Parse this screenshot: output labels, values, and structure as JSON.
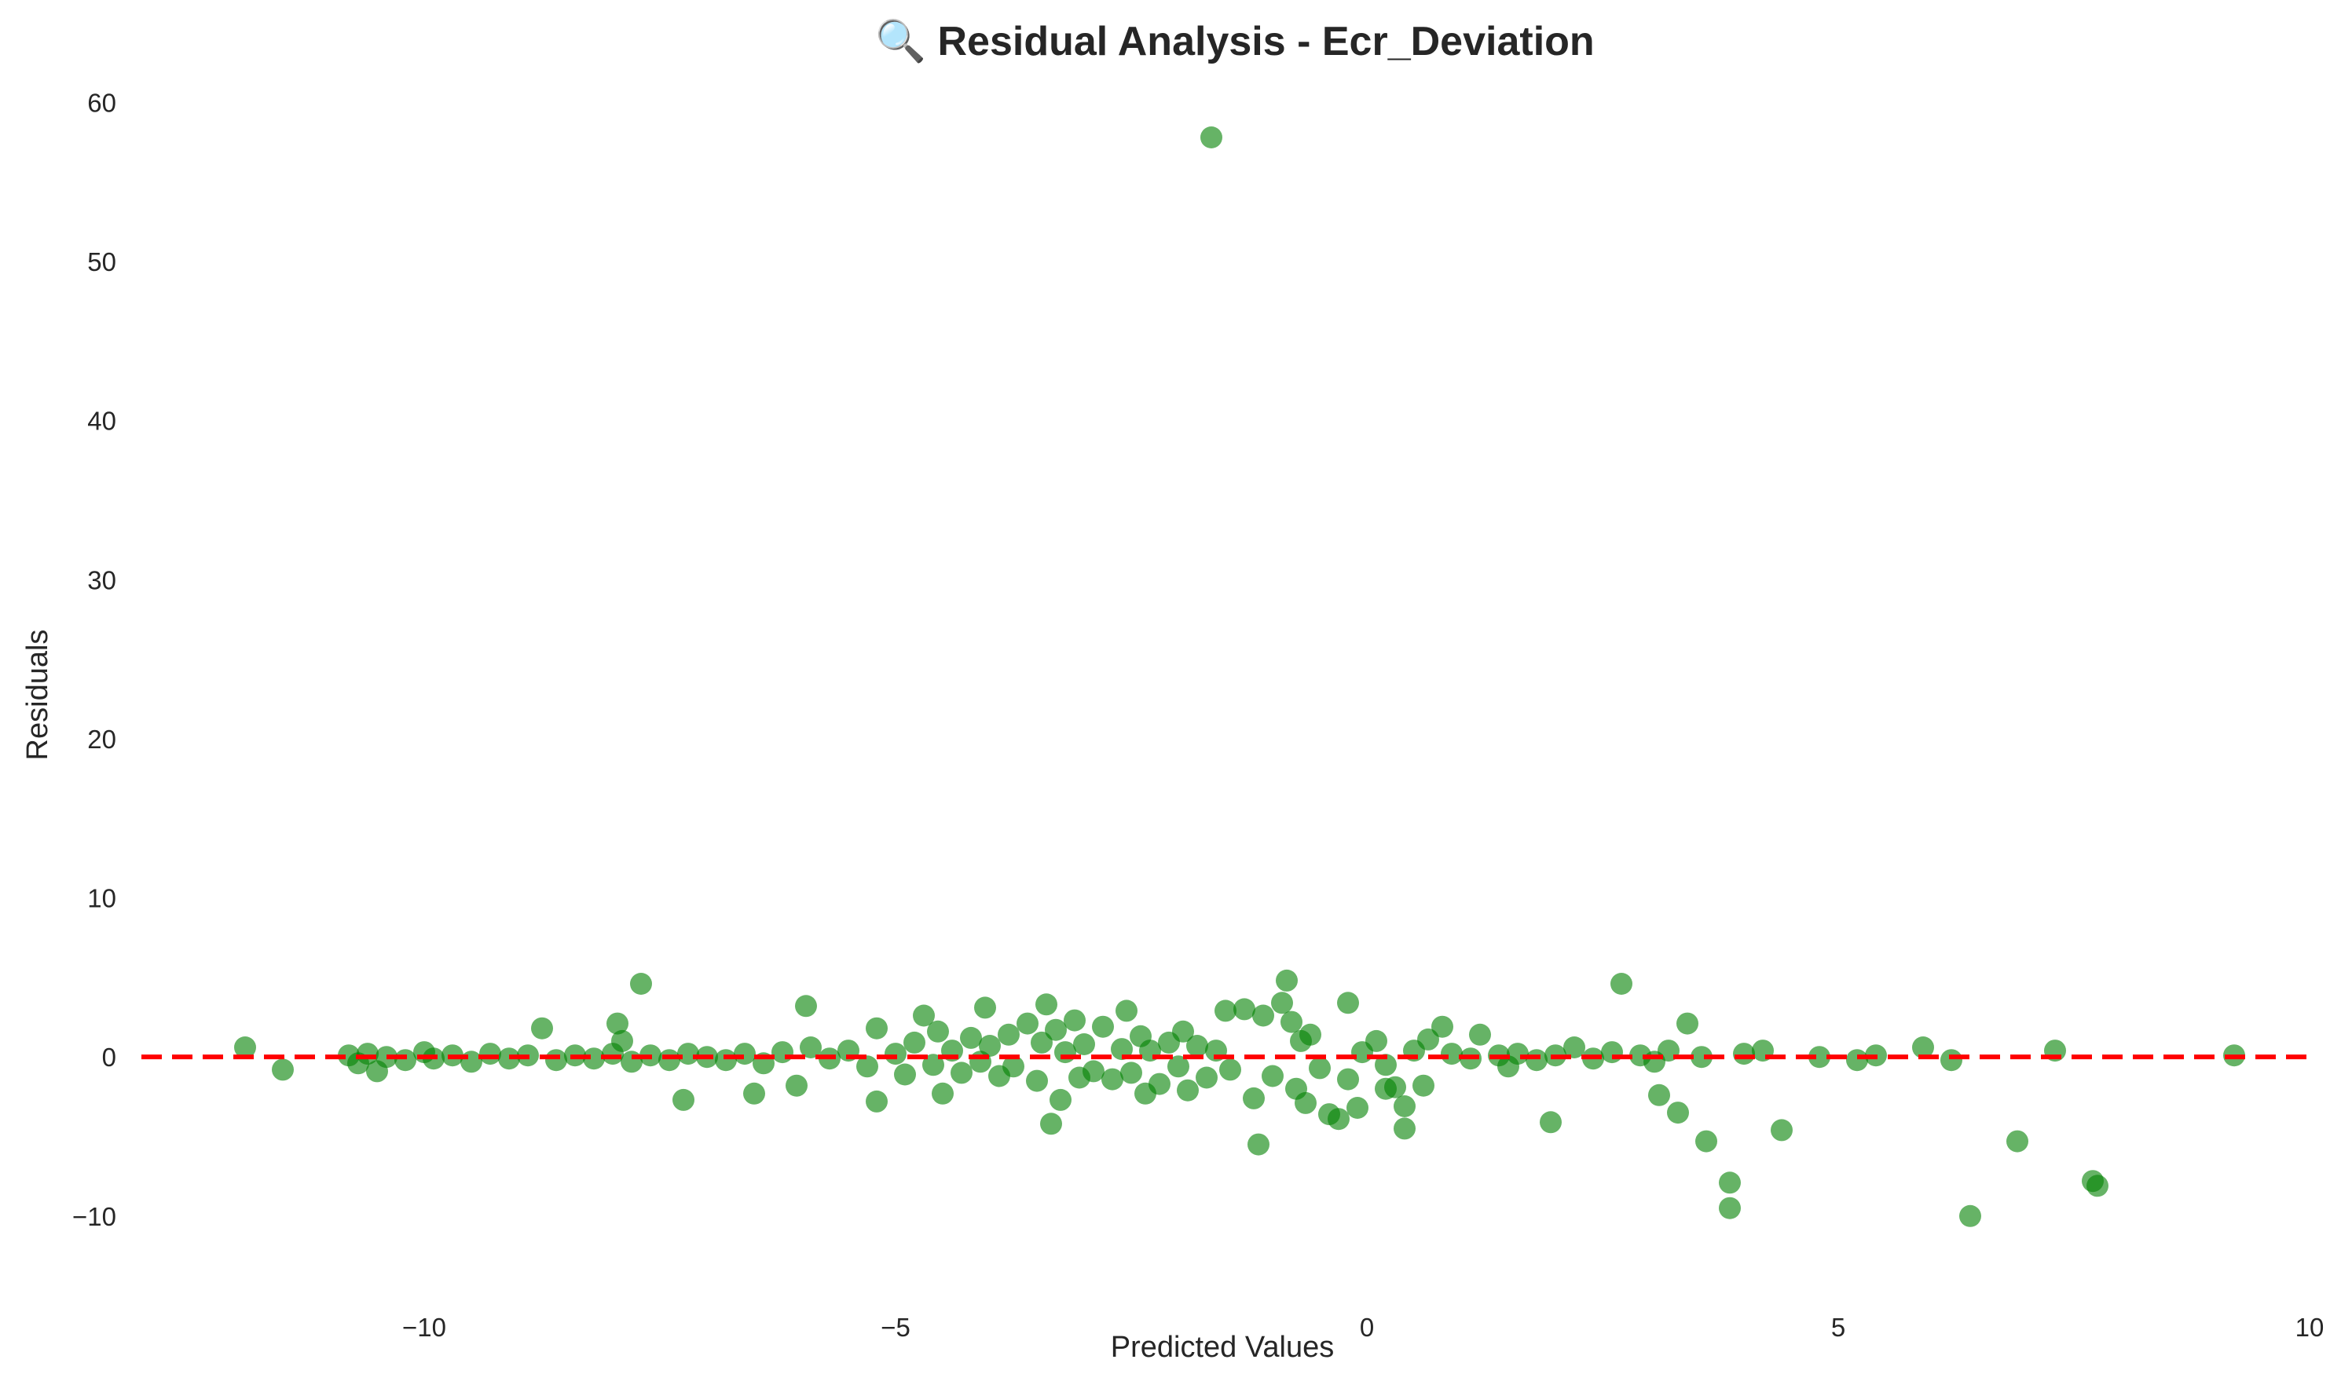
{
  "chart_data": {
    "type": "scatter",
    "title": "🔍 Residual Analysis - Ecr_Deviation",
    "xlabel": "Predicted Values",
    "ylabel": "Residuals",
    "xlim": [
      -13,
      10
    ],
    "ylim": [
      -14.5,
      61.5
    ],
    "xticks": [
      -10,
      -5,
      0,
      5,
      10
    ],
    "xtick_labels": [
      "−10",
      "−5",
      "0",
      "5",
      "10"
    ],
    "yticks": [
      -10,
      0,
      10,
      20,
      30,
      40,
      50,
      60
    ],
    "ytick_labels": [
      "−10",
      "0",
      "10",
      "20",
      "30",
      "40",
      "50",
      "60"
    ],
    "grid": false,
    "reference_line": {
      "y": 0,
      "style": "dashed",
      "color": "#ff0000"
    },
    "colors": {
      "points": "#008000",
      "reference_line": "#ff0000"
    },
    "series": [
      {
        "points": [
          [
            -1.65,
            57.8
          ],
          [
            -11.9,
            0.6
          ],
          [
            -11.5,
            -0.8
          ],
          [
            -10.8,
            0.1
          ],
          [
            -10.7,
            -0.4
          ],
          [
            -10.6,
            0.2
          ],
          [
            -10.5,
            -0.9
          ],
          [
            -10.4,
            0.0
          ],
          [
            -10.2,
            -0.2
          ],
          [
            -10.0,
            0.3
          ],
          [
            -9.9,
            -0.1
          ],
          [
            -9.7,
            0.1
          ],
          [
            -9.5,
            -0.3
          ],
          [
            -9.3,
            0.2
          ],
          [
            -9.1,
            -0.1
          ],
          [
            -8.9,
            0.1
          ],
          [
            -8.75,
            1.8
          ],
          [
            -8.6,
            -0.2
          ],
          [
            -8.4,
            0.1
          ],
          [
            -8.2,
            -0.1
          ],
          [
            -8.0,
            0.2
          ],
          [
            -7.95,
            2.1
          ],
          [
            -7.9,
            1.0
          ],
          [
            -7.8,
            -0.3
          ],
          [
            -7.7,
            4.6
          ],
          [
            -7.6,
            0.1
          ],
          [
            -7.4,
            -0.2
          ],
          [
            -7.2,
            0.2
          ],
          [
            -7.25,
            -2.7
          ],
          [
            -7.0,
            0.0
          ],
          [
            -6.8,
            -0.2
          ],
          [
            -6.6,
            0.2
          ],
          [
            -6.5,
            -2.3
          ],
          [
            -6.4,
            -0.4
          ],
          [
            -6.2,
            0.3
          ],
          [
            -6.05,
            -1.8
          ],
          [
            -5.95,
            3.2
          ],
          [
            -5.9,
            0.6
          ],
          [
            -5.7,
            -0.1
          ],
          [
            -5.5,
            0.4
          ],
          [
            -5.3,
            -0.6
          ],
          [
            -5.2,
            1.8
          ],
          [
            -5.2,
            -2.8
          ],
          [
            -5.0,
            0.2
          ],
          [
            -4.9,
            -1.1
          ],
          [
            -4.8,
            0.9
          ],
          [
            -4.7,
            2.6
          ],
          [
            -4.6,
            -0.5
          ],
          [
            -4.55,
            1.6
          ],
          [
            -4.5,
            -2.3
          ],
          [
            -4.4,
            0.4
          ],
          [
            -4.3,
            -1.0
          ],
          [
            -4.2,
            1.2
          ],
          [
            -4.1,
            -0.3
          ],
          [
            -4.05,
            3.1
          ],
          [
            -4.0,
            0.7
          ],
          [
            -3.9,
            -1.2
          ],
          [
            -3.8,
            1.4
          ],
          [
            -3.75,
            -0.6
          ],
          [
            -3.6,
            2.1
          ],
          [
            -3.5,
            -1.5
          ],
          [
            -3.45,
            0.9
          ],
          [
            -3.4,
            3.3
          ],
          [
            -3.35,
            -4.2
          ],
          [
            -3.3,
            1.7
          ],
          [
            -3.25,
            -2.7
          ],
          [
            -3.2,
            0.3
          ],
          [
            -3.1,
            2.3
          ],
          [
            -3.05,
            -1.3
          ],
          [
            -3.0,
            0.8
          ],
          [
            -2.9,
            -0.9
          ],
          [
            -2.8,
            1.9
          ],
          [
            -2.7,
            -1.4
          ],
          [
            -2.6,
            0.5
          ],
          [
            -2.55,
            2.9
          ],
          [
            -2.5,
            -1.0
          ],
          [
            -2.4,
            1.3
          ],
          [
            -2.35,
            -2.3
          ],
          [
            -2.3,
            0.4
          ],
          [
            -2.2,
            -1.7
          ],
          [
            -2.1,
            0.9
          ],
          [
            -2.0,
            -0.6
          ],
          [
            -1.95,
            1.6
          ],
          [
            -1.9,
            -2.1
          ],
          [
            -1.8,
            0.7
          ],
          [
            -1.7,
            -1.3
          ],
          [
            -1.6,
            0.4
          ],
          [
            -1.5,
            2.9
          ],
          [
            -1.45,
            -0.8
          ],
          [
            -1.3,
            3.0
          ],
          [
            -1.2,
            -2.6
          ],
          [
            -1.15,
            -5.5
          ],
          [
            -1.1,
            2.6
          ],
          [
            -1.0,
            -1.2
          ],
          [
            -0.9,
            3.4
          ],
          [
            -0.85,
            4.8
          ],
          [
            -0.8,
            2.2
          ],
          [
            -0.75,
            -2.0
          ],
          [
            -0.7,
            1.0
          ],
          [
            -0.65,
            -2.9
          ],
          [
            -0.6,
            1.4
          ],
          [
            -0.5,
            -0.7
          ],
          [
            -0.4,
            -3.6
          ],
          [
            -0.3,
            -3.9
          ],
          [
            -0.2,
            3.4
          ],
          [
            -0.2,
            -1.4
          ],
          [
            -0.1,
            -3.2
          ],
          [
            -0.05,
            0.3
          ],
          [
            0.1,
            1.0
          ],
          [
            0.2,
            -0.5
          ],
          [
            0.2,
            -2.0
          ],
          [
            0.3,
            -1.9
          ],
          [
            0.4,
            -3.1
          ],
          [
            0.4,
            -4.5
          ],
          [
            0.5,
            0.4
          ],
          [
            0.6,
            -1.8
          ],
          [
            0.65,
            1.1
          ],
          [
            0.8,
            1.9
          ],
          [
            0.9,
            0.2
          ],
          [
            1.1,
            -0.1
          ],
          [
            1.2,
            1.4
          ],
          [
            1.4,
            0.1
          ],
          [
            1.5,
            -0.6
          ],
          [
            1.6,
            0.2
          ],
          [
            1.8,
            -0.2
          ],
          [
            1.95,
            -4.1
          ],
          [
            2.0,
            0.1
          ],
          [
            2.2,
            0.6
          ],
          [
            2.4,
            -0.1
          ],
          [
            2.6,
            0.3
          ],
          [
            2.7,
            4.6
          ],
          [
            2.9,
            0.1
          ],
          [
            3.05,
            -0.3
          ],
          [
            3.1,
            -2.4
          ],
          [
            3.2,
            0.4
          ],
          [
            3.3,
            -3.5
          ],
          [
            3.4,
            2.1
          ],
          [
            3.55,
            0.0
          ],
          [
            3.6,
            -5.3
          ],
          [
            3.85,
            -7.9
          ],
          [
            3.85,
            -9.5
          ],
          [
            4.0,
            0.2
          ],
          [
            4.2,
            0.4
          ],
          [
            4.4,
            -4.6
          ],
          [
            4.8,
            0.0
          ],
          [
            5.2,
            -0.2
          ],
          [
            5.4,
            0.1
          ],
          [
            5.9,
            0.6
          ],
          [
            6.2,
            -0.2
          ],
          [
            6.4,
            -10.0
          ],
          [
            6.9,
            -5.3
          ],
          [
            7.3,
            0.4
          ],
          [
            7.7,
            -7.8
          ],
          [
            7.75,
            -8.1
          ],
          [
            9.2,
            0.1
          ]
        ]
      }
    ]
  }
}
